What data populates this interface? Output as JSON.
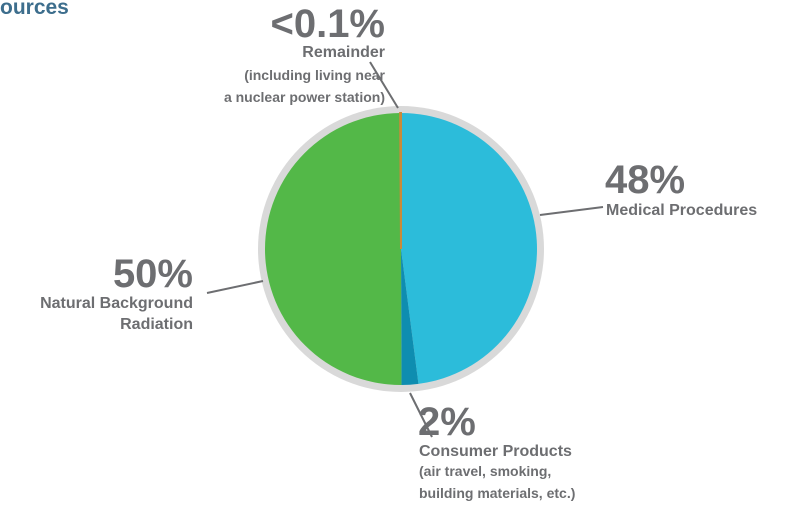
{
  "chart_data": {
    "type": "pie",
    "title": "ources",
    "categories": [
      "Medical Procedures",
      "Consumer Products",
      "Natural Background Radiation",
      "Remainder"
    ],
    "values": [
      48,
      2,
      50,
      0.1
    ],
    "value_labels": [
      "48%",
      "2%",
      "50%",
      "<0.1%"
    ],
    "colors": [
      "#2cbcda",
      "#0e8db0",
      "#53b848",
      "#c98a3a"
    ],
    "notes": {
      "1": "(air travel, smoking,\nbuilding materials, etc.)",
      "3": "(including living near\na nuclear power station)"
    }
  }
}
